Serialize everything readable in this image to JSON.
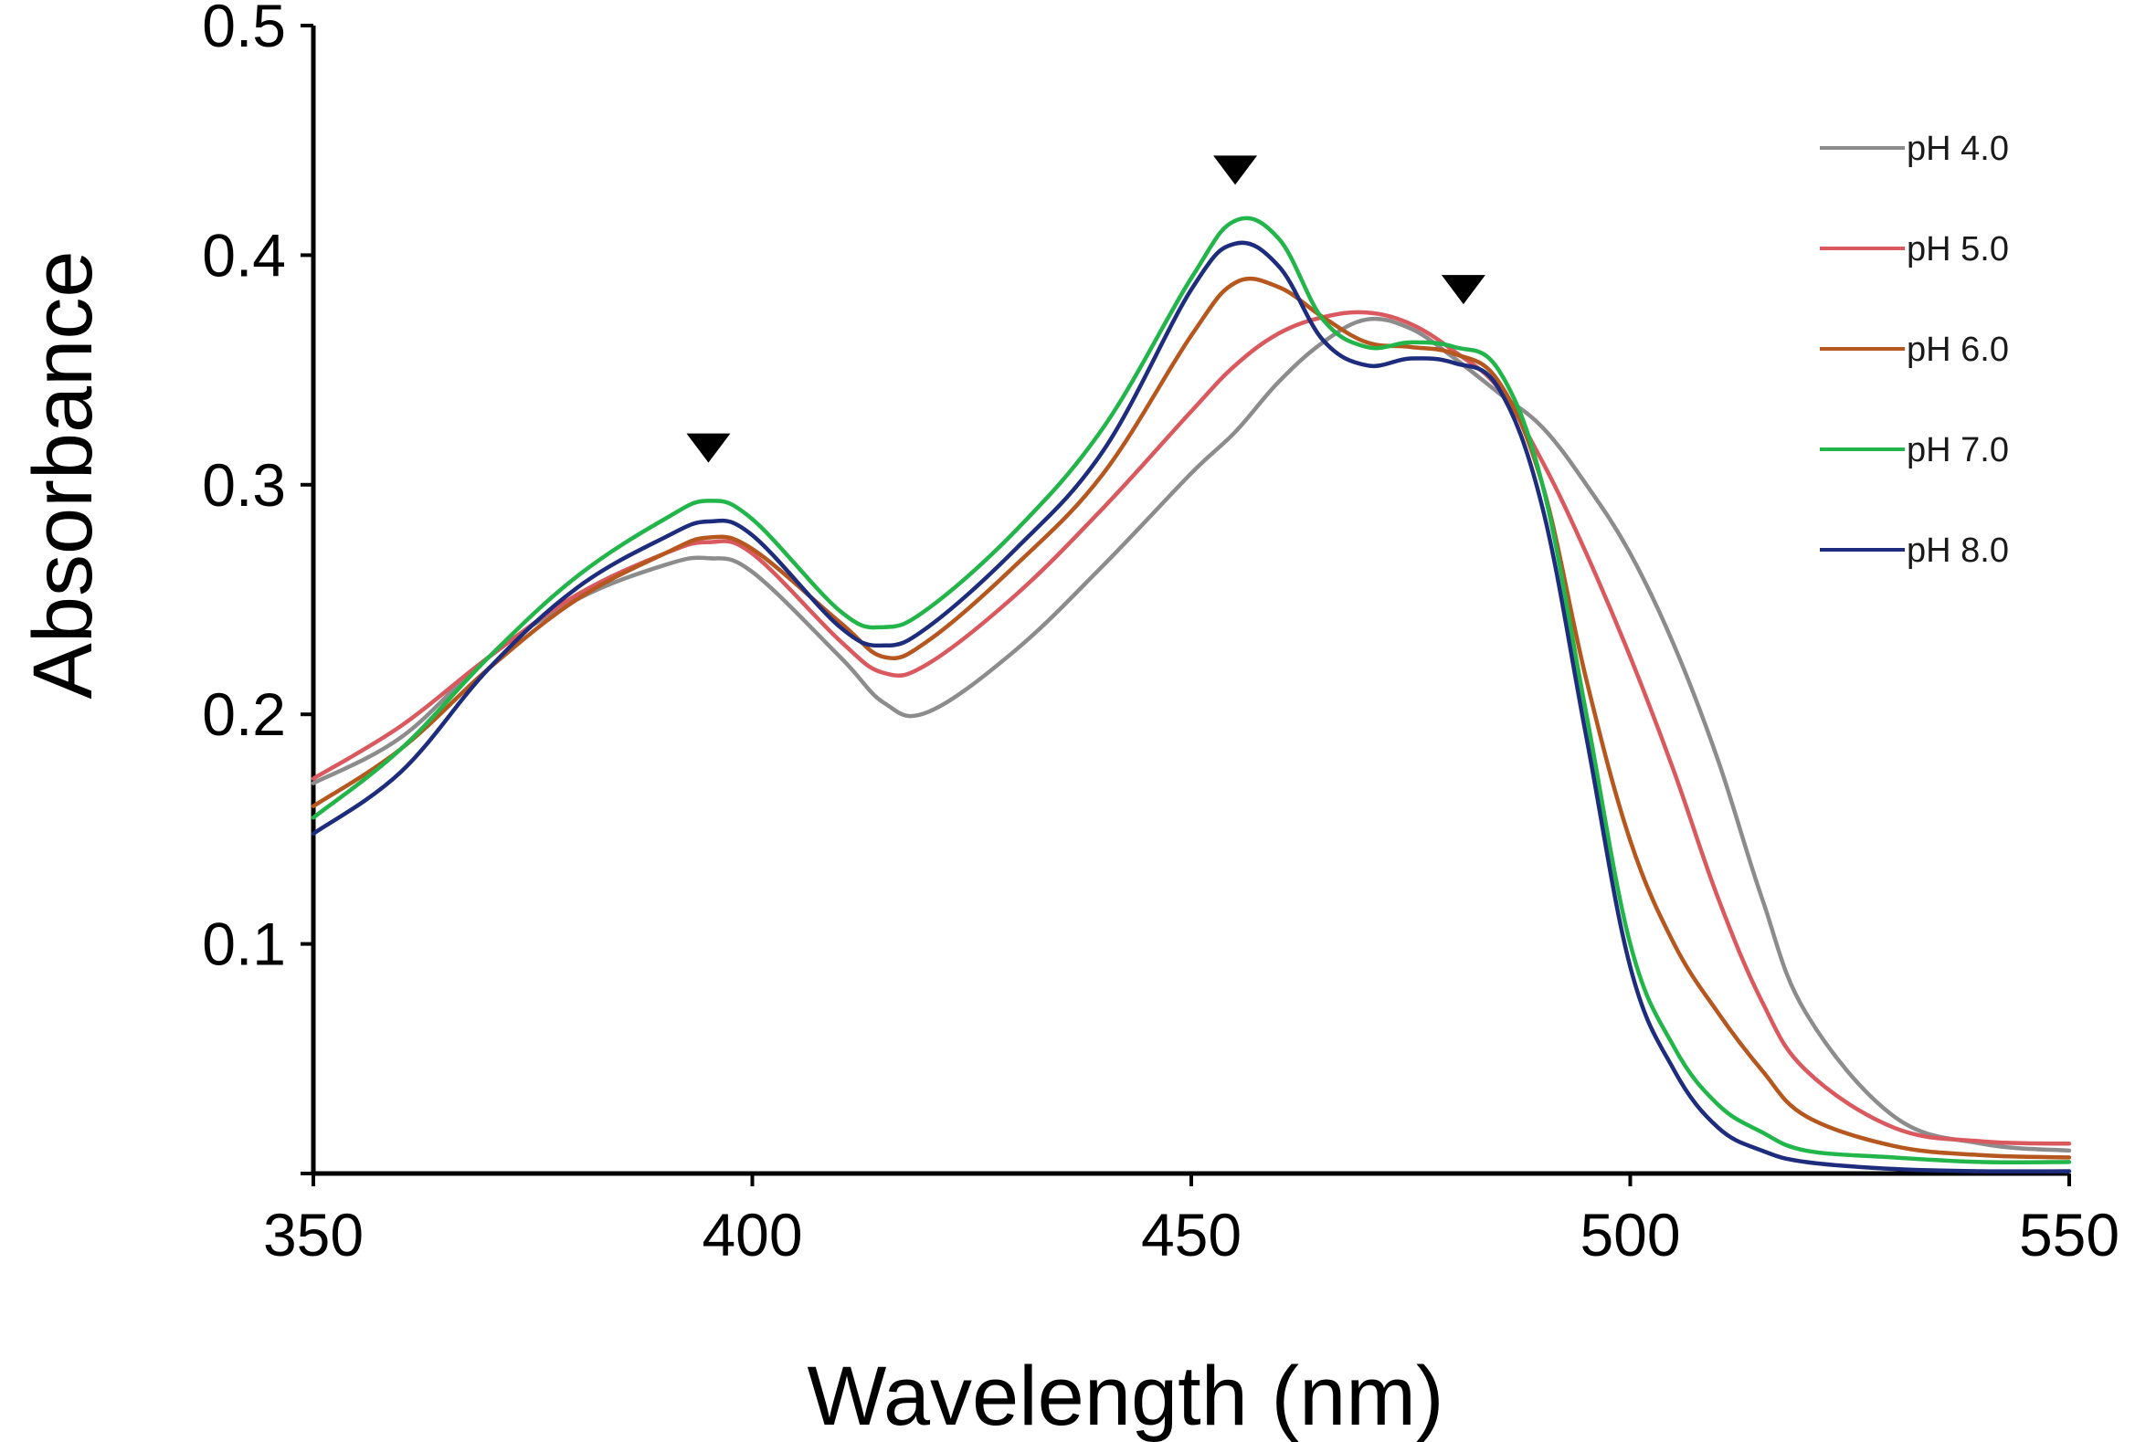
{
  "chart_data": {
    "type": "line",
    "title": "",
    "xlabel": "Wavelength (nm)",
    "ylabel": "Absorbance",
    "xlim": [
      350,
      550
    ],
    "ylim": [
      0,
      0.5
    ],
    "x_ticks": [
      350,
      400,
      450,
      500,
      550
    ],
    "x_tick_labels": [
      "350",
      "400",
      "450",
      "500",
      "550"
    ],
    "y_ticks": [
      0.1,
      0.2,
      0.3,
      0.4,
      0.5
    ],
    "y_tick_labels": [
      "0.1",
      "0.2",
      "0.3",
      "0.4",
      "0.5"
    ],
    "grid": false,
    "legend_position": "top-right",
    "x": [
      350,
      360,
      370,
      380,
      390,
      395,
      400,
      410,
      415,
      420,
      430,
      440,
      450,
      455,
      460,
      465,
      470,
      475,
      480,
      485,
      490,
      495,
      500,
      505,
      510,
      515,
      520,
      530,
      540,
      550
    ],
    "series": [
      {
        "name": "pH 4.0",
        "color": "#8c8c8c",
        "values": [
          0.17,
          0.19,
          0.225,
          0.25,
          0.265,
          0.268,
          0.262,
          0.225,
          0.205,
          0.201,
          0.228,
          0.265,
          0.305,
          0.323,
          0.345,
          0.362,
          0.372,
          0.368,
          0.355,
          0.34,
          0.325,
          0.3,
          0.27,
          0.23,
          0.18,
          0.12,
          0.07,
          0.025,
          0.013,
          0.01
        ]
      },
      {
        "name": "pH 5.0",
        "color": "#d9595e",
        "values": [
          0.172,
          0.195,
          0.225,
          0.252,
          0.27,
          0.275,
          0.27,
          0.232,
          0.218,
          0.222,
          0.252,
          0.29,
          0.332,
          0.352,
          0.366,
          0.373,
          0.375,
          0.37,
          0.358,
          0.342,
          0.31,
          0.27,
          0.225,
          0.175,
          0.12,
          0.075,
          0.045,
          0.02,
          0.014,
          0.013
        ]
      },
      {
        "name": "pH 6.0",
        "color": "#b5571e",
        "values": [
          0.16,
          0.185,
          0.22,
          0.25,
          0.27,
          0.277,
          0.272,
          0.24,
          0.225,
          0.232,
          0.265,
          0.305,
          0.365,
          0.388,
          0.386,
          0.373,
          0.362,
          0.36,
          0.357,
          0.345,
          0.3,
          0.215,
          0.145,
          0.1,
          0.07,
          0.045,
          0.025,
          0.012,
          0.008,
          0.007
        ]
      },
      {
        "name": "pH 7.0",
        "color": "#22b54a",
        "values": [
          0.155,
          0.185,
          0.225,
          0.26,
          0.285,
          0.293,
          0.285,
          0.245,
          0.238,
          0.246,
          0.28,
          0.325,
          0.39,
          0.415,
          0.407,
          0.372,
          0.36,
          0.362,
          0.36,
          0.35,
          0.3,
          0.2,
          0.1,
          0.055,
          0.03,
          0.018,
          0.01,
          0.007,
          0.005,
          0.005
        ]
      },
      {
        "name": "pH 8.0",
        "color": "#1d2c7c",
        "values": [
          0.148,
          0.175,
          0.22,
          0.255,
          0.277,
          0.284,
          0.278,
          0.238,
          0.23,
          0.238,
          0.272,
          0.315,
          0.385,
          0.405,
          0.395,
          0.363,
          0.352,
          0.355,
          0.353,
          0.342,
          0.29,
          0.19,
          0.09,
          0.045,
          0.02,
          0.01,
          0.005,
          0.002,
          0.001,
          0.001
        ]
      }
    ],
    "annotations": [
      {
        "type": "triangle-down",
        "x": 395,
        "y": 0.316,
        "color": "#000000"
      },
      {
        "type": "triangle-down",
        "x": 455,
        "y": 0.437,
        "color": "#000000"
      },
      {
        "type": "triangle-down",
        "x": 481,
        "y": 0.385,
        "color": "#000000"
      }
    ]
  }
}
